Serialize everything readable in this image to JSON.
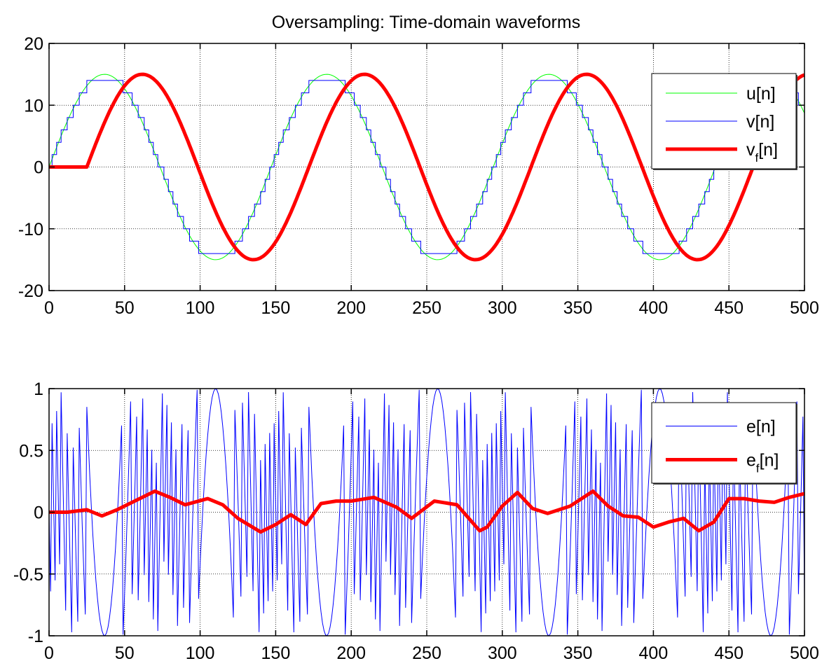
{
  "chart_data": [
    {
      "type": "line",
      "title": "Oversampling: Time-domain waveforms",
      "xlabel": "",
      "ylabel": "",
      "xlim": [
        0,
        500
      ],
      "ylim": [
        -20,
        20
      ],
      "xticks": [
        "0",
        "50",
        "100",
        "150",
        "200",
        "250",
        "300",
        "350",
        "400",
        "450",
        "500"
      ],
      "yticks": [
        "20",
        "10",
        "0",
        "-10",
        "-20"
      ],
      "grid": true,
      "legend_placement": "top-right",
      "sine_period": 147,
      "series": [
        {
          "name": "u[n]",
          "legend_main": "u[n]",
          "legend_sub": "",
          "legend_suffix": "",
          "color": "#00ff00",
          "style": "sine",
          "amplitude": 15,
          "phase_shift": 0
        },
        {
          "name": "v[n]",
          "legend_main": "v[n]",
          "legend_sub": "",
          "legend_suffix": "",
          "color": "#0000ff",
          "style": "staircase",
          "amplitude": 15,
          "step": 2,
          "phase_shift": 0
        },
        {
          "name": "vf[n]",
          "legend_main": "v",
          "legend_sub": "f",
          "legend_suffix": "[n]",
          "color": "#ff0000",
          "style": "sine-delayed",
          "amplitude": 15,
          "delay": 25,
          "thick": true
        }
      ]
    },
    {
      "type": "line",
      "title": "",
      "xlabel": "",
      "ylabel": "",
      "xlim": [
        0,
        500
      ],
      "ylim": [
        -1,
        1
      ],
      "xticks": [
        "0",
        "50",
        "100",
        "150",
        "200",
        "250",
        "300",
        "350",
        "400",
        "450",
        "500"
      ],
      "yticks": [
        "1",
        "0.5",
        "0",
        "-0.5",
        "-1"
      ],
      "grid": true,
      "legend_placement": "top-right",
      "series": [
        {
          "name": "e[n]",
          "legend_main": "e[n]",
          "legend_sub": "",
          "legend_suffix": "",
          "color": "#0000ff",
          "style": "error-noise"
        },
        {
          "name": "ef[n]",
          "legend_main": "e",
          "legend_sub": "f",
          "legend_suffix": "[n]",
          "color": "#ff0000",
          "thick": true,
          "x": [
            0,
            12,
            25,
            35,
            45,
            55,
            70,
            80,
            90,
            105,
            115,
            125,
            140,
            150,
            160,
            170,
            180,
            190,
            200,
            215,
            230,
            240,
            255,
            265,
            270,
            285,
            290,
            300,
            310,
            320,
            330,
            345,
            360,
            370,
            380,
            390,
            400,
            410,
            420,
            430,
            440,
            450,
            460,
            470,
            480,
            490,
            500
          ],
          "y": [
            0,
            0,
            0.02,
            -0.03,
            0.02,
            0.08,
            0.17,
            0.12,
            0.06,
            0.11,
            0.06,
            -0.05,
            -0.16,
            -0.1,
            -0.02,
            -0.1,
            0.07,
            0.09,
            0.09,
            0.12,
            0.04,
            -0.05,
            0.09,
            0.07,
            0.06,
            -0.15,
            -0.12,
            0.05,
            0.16,
            0.03,
            -0.01,
            0.05,
            0.17,
            0.05,
            -0.03,
            -0.04,
            -0.12,
            -0.08,
            -0.05,
            -0.15,
            -0.08,
            0.11,
            0.11,
            0.09,
            0.08,
            0.12,
            0.15
          ]
        }
      ]
    }
  ]
}
